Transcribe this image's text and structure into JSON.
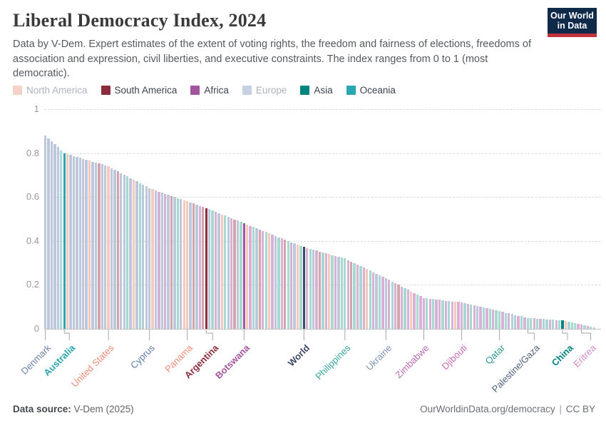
{
  "header": {
    "title": "Liberal Democracy Index, 2024",
    "subtitle": "Data by V-Dem. Expert estimates of the extent of voting rights, the freedom and fairness of elections, freedoms of association and expression, civil liberties, and executive constraints. The index ranges from 0 to 1 (most democratic).",
    "logo_line1": "Our World",
    "logo_line2": "in Data",
    "logo_bg": "#102a4a",
    "logo_red": "#c0333c"
  },
  "legend": {
    "items": [
      {
        "label": "North America",
        "color": "#f6cfc6",
        "dimmed": true
      },
      {
        "label": "South America",
        "color": "#8c2d3e",
        "dimmed": false
      },
      {
        "label": "Africa",
        "color": "#a2559c",
        "dimmed": false
      },
      {
        "label": "Europe",
        "color": "#c6d0e3",
        "dimmed": true
      },
      {
        "label": "Asia",
        "color": "#00847e",
        "dimmed": false
      },
      {
        "label": "Oceania",
        "color": "#29a8b3",
        "dimmed": false
      }
    ],
    "active_text_color": "#3b4351",
    "dimmed_text_color": "#adb3bd"
  },
  "chart_data": {
    "type": "bar",
    "title": "Liberal Democracy Index, 2024",
    "ylim": [
      0,
      1
    ],
    "grid": true,
    "yticks": [
      {
        "v": 1,
        "label": "1"
      },
      {
        "v": 0.8,
        "label": "0.8"
      },
      {
        "v": 0.6,
        "label": "0.6"
      },
      {
        "v": 0.4,
        "label": "0.4"
      },
      {
        "v": 0.2,
        "label": "0.2"
      },
      {
        "v": 0,
        "label": "0"
      }
    ],
    "values": [
      0.88,
      0.867,
      0.853,
      0.84,
      0.827,
      0.813,
      0.8,
      0.796,
      0.791,
      0.787,
      0.783,
      0.779,
      0.774,
      0.77,
      0.766,
      0.761,
      0.757,
      0.753,
      0.749,
      0.744,
      0.74,
      0.732,
      0.725,
      0.717,
      0.709,
      0.702,
      0.694,
      0.686,
      0.678,
      0.671,
      0.663,
      0.655,
      0.648,
      0.64,
      0.635,
      0.63,
      0.625,
      0.62,
      0.615,
      0.61,
      0.605,
      0.6,
      0.595,
      0.59,
      0.585,
      0.58,
      0.575,
      0.57,
      0.565,
      0.56,
      0.555,
      0.55,
      0.544,
      0.538,
      0.533,
      0.527,
      0.521,
      0.515,
      0.509,
      0.503,
      0.498,
      0.492,
      0.486,
      0.48,
      0.474,
      0.469,
      0.463,
      0.457,
      0.451,
      0.446,
      0.44,
      0.434,
      0.429,
      0.423,
      0.417,
      0.412,
      0.406,
      0.4,
      0.394,
      0.389,
      0.383,
      0.377,
      0.372,
      0.368,
      0.364,
      0.36,
      0.356,
      0.352,
      0.348,
      0.344,
      0.34,
      0.336,
      0.332,
      0.328,
      0.324,
      0.32,
      0.313,
      0.306,
      0.299,
      0.292,
      0.285,
      0.278,
      0.272,
      0.265,
      0.258,
      0.251,
      0.244,
      0.237,
      0.23,
      0.223,
      0.215,
      0.208,
      0.2,
      0.193,
      0.185,
      0.178,
      0.17,
      0.163,
      0.155,
      0.148,
      0.14,
      0.138,
      0.137,
      0.135,
      0.133,
      0.132,
      0.13,
      0.128,
      0.127,
      0.125,
      0.123,
      0.122,
      0.12,
      0.117,
      0.113,
      0.11,
      0.107,
      0.103,
      0.1,
      0.097,
      0.093,
      0.09,
      0.087,
      0.083,
      0.08,
      0.077,
      0.073,
      0.07,
      0.067,
      0.063,
      0.06,
      0.057,
      0.053,
      0.05,
      0.049,
      0.048,
      0.047,
      0.046,
      0.044,
      0.043,
      0.042,
      0.041,
      0.04,
      0.039,
      0.038,
      0.035,
      0.032,
      0.029,
      0.026,
      0.023,
      0.02,
      0.017,
      0.014,
      0.011,
      0.008
    ],
    "continents": "EEEEEOONEEEEEENEESEENEESEEIENEIEEENEAEAESEIENNESEASSEIAENIEASEIANAIESAINAEIASIAENIWAIEASIANIAEIIASIAIANIAEIAEAIASAIANAIAAIAIAAIAIANAAIAIAEAIAIAIIAIAIEAIAIIAIAIIAIAIINIIIAAIAII",
    "continent_names": {
      "E": "Europe",
      "N": "North America",
      "S": "South America",
      "A": "Africa",
      "I": "Asia",
      "O": "Oceania",
      "W": "World"
    },
    "continent_bar_colors": {
      "E": "#bdc8dc",
      "N": "#f6c9bd",
      "S": "#d2a5ac",
      "A": "#d8b2d6",
      "I": "#a7d8d1",
      "O": "#a9dcdf",
      "W": "#3d4a63"
    },
    "highlights": [
      {
        "index": 6,
        "label": "Australia",
        "color": "#2aa6ae"
      },
      {
        "index": 51,
        "label": "Argentina",
        "color": "#8c2d3e"
      },
      {
        "index": 63,
        "label": "Botswana",
        "color": "#a2559c"
      },
      {
        "index": 82,
        "label": "World",
        "color": "#3d4a63"
      },
      {
        "index": 164,
        "label": "China",
        "color": "#00847e"
      }
    ],
    "x_labels": [
      {
        "index": 0,
        "label": "Denmark",
        "color": "#6d83a8",
        "bold": false,
        "dx": 0
      },
      {
        "index": 6,
        "label": "Australia",
        "color": "#26a4ad",
        "bold": true,
        "dx": 7
      },
      {
        "index": 20,
        "label": "United States",
        "color": "#ec8a74",
        "bold": false,
        "dx": 0
      },
      {
        "index": 33,
        "label": "Cyprus",
        "color": "#5d79a7",
        "bold": false,
        "dx": 0
      },
      {
        "index": 45,
        "label": "Panama",
        "color": "#ee8c77",
        "bold": false,
        "dx": 0
      },
      {
        "index": 51,
        "label": "Argentina",
        "color": "#8c2d3e",
        "bold": true,
        "dx": 9
      },
      {
        "index": 63,
        "label": "Botswana",
        "color": "#a2559c",
        "bold": true,
        "dx": 0
      },
      {
        "index": 82,
        "label": "World",
        "color": "#3d4a63",
        "bold": true,
        "dx": 0
      },
      {
        "index": 95,
        "label": "Philippines",
        "color": "#35a49e",
        "bold": false,
        "dx": 0
      },
      {
        "index": 108,
        "label": "Ukraine",
        "color": "#7e90b4",
        "bold": false,
        "dx": 0
      },
      {
        "index": 120,
        "label": "Zimbabwe",
        "color": "#b868b5",
        "bold": false,
        "dx": 0
      },
      {
        "index": 132,
        "label": "Djibouti",
        "color": "#c36ab4",
        "bold": false,
        "dx": 0
      },
      {
        "index": 144,
        "label": "Qatar",
        "color": "#2d9c94",
        "bold": false,
        "dx": 0
      },
      {
        "index": 153,
        "label": "Palestine/Gaza",
        "color": "#50607a",
        "bold": false,
        "dx": 9
      },
      {
        "index": 164,
        "label": "China",
        "color": "#00847e",
        "bold": true,
        "dx": 7
      },
      {
        "index": 170,
        "label": "Eritrea",
        "color": "#cd8bc6",
        "bold": false,
        "dx": 13
      }
    ]
  },
  "footer": {
    "source_label": "Data source:",
    "source_value": "V-Dem (2025)",
    "url": "OurWorldinData.org/democracy",
    "separator": "|",
    "license": "CC BY"
  }
}
